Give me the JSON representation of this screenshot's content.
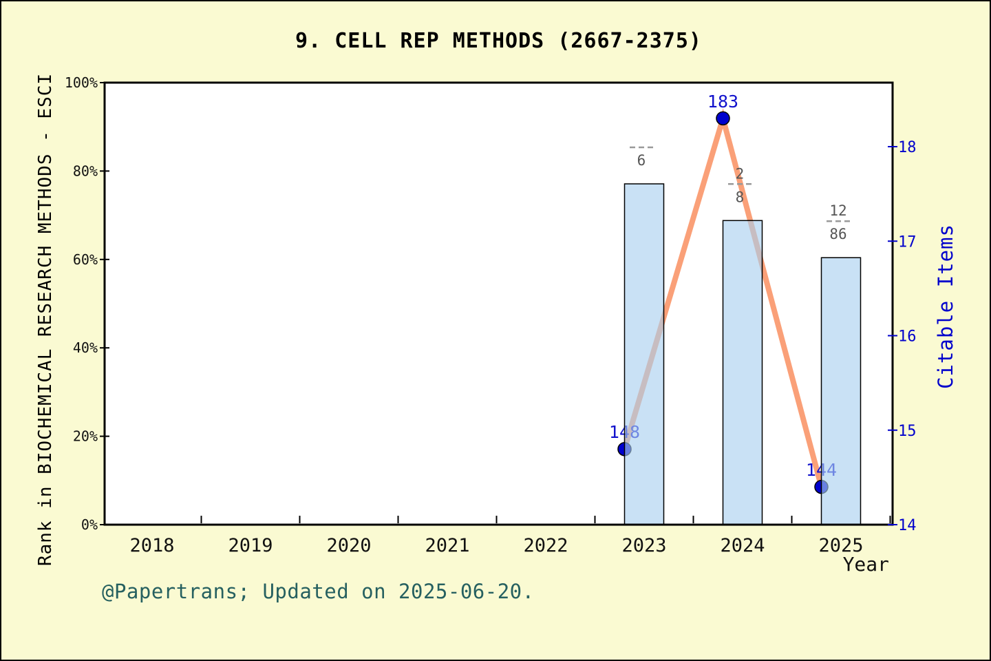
{
  "window": {
    "background": "#FAFAD2",
    "frame_border": "#000000"
  },
  "footer": {
    "text": "@Papertrans; Updated on 2025-06-20.",
    "color": "#266060"
  },
  "colors": {
    "plot_bg": "#FFFFFF",
    "bar_fill": "#A8CFEF",
    "bar_fill_opacity": 0.62,
    "bar_edge": "#000000",
    "line": "#FAA078",
    "marker": "#0000CD",
    "marker_edge": "#000000",
    "marker_label": "#1212CC",
    "right_axis": "#0000CC",
    "fraction_text": "#555555",
    "fraction_rule": "#999999",
    "text": "#111111",
    "spine": "#000000"
  },
  "chart_data": {
    "type": "bar+line",
    "title": "9. CELL REP METHODS (2667-2375)",
    "xlabel": "Year",
    "ylabel_left": "Rank in BIOCHEMICAL RESEARCH METHODS - ESCI",
    "ylabel_right": "Citable Items",
    "categories": [
      "2018",
      "2019",
      "2020",
      "2021",
      "2022",
      "2023",
      "2024",
      "2025"
    ],
    "x_tick_labels": [
      "2018",
      "2019",
      "2020",
      "2021",
      "2022",
      "2023",
      "2024",
      "2025"
    ],
    "y_left": {
      "ticks": [
        "0%",
        "20%",
        "40%",
        "60%",
        "80%",
        "100%"
      ],
      "tick_values": [
        0,
        20,
        40,
        60,
        80,
        100
      ],
      "range": [
        0,
        100
      ]
    },
    "y_right": {
      "ticks": [
        "14",
        "15",
        "16",
        "17",
        "18"
      ],
      "tick_values": [
        14,
        15,
        16,
        17,
        18
      ],
      "range": [
        14,
        18.68
      ]
    },
    "grid": false,
    "legend": "none",
    "series": [
      {
        "name": "rank-percentile-bars",
        "type": "bar",
        "axis": "left",
        "values": [
          null,
          null,
          null,
          null,
          null,
          77.1,
          68.8,
          60.4
        ]
      },
      {
        "name": "citable-items-line",
        "type": "line",
        "axis": "right",
        "values": [
          null,
          null,
          null,
          null,
          null,
          14.8,
          18.3,
          14.4
        ],
        "labels": [
          null,
          null,
          null,
          null,
          null,
          "148",
          "183",
          "144"
        ]
      }
    ],
    "annotations": [
      {
        "category": "2023",
        "numerator": "",
        "denominator": "6"
      },
      {
        "category": "2024",
        "numerator": "2",
        "denominator": "8"
      },
      {
        "category": "2025",
        "numerator": "12",
        "denominator": "86"
      }
    ]
  }
}
